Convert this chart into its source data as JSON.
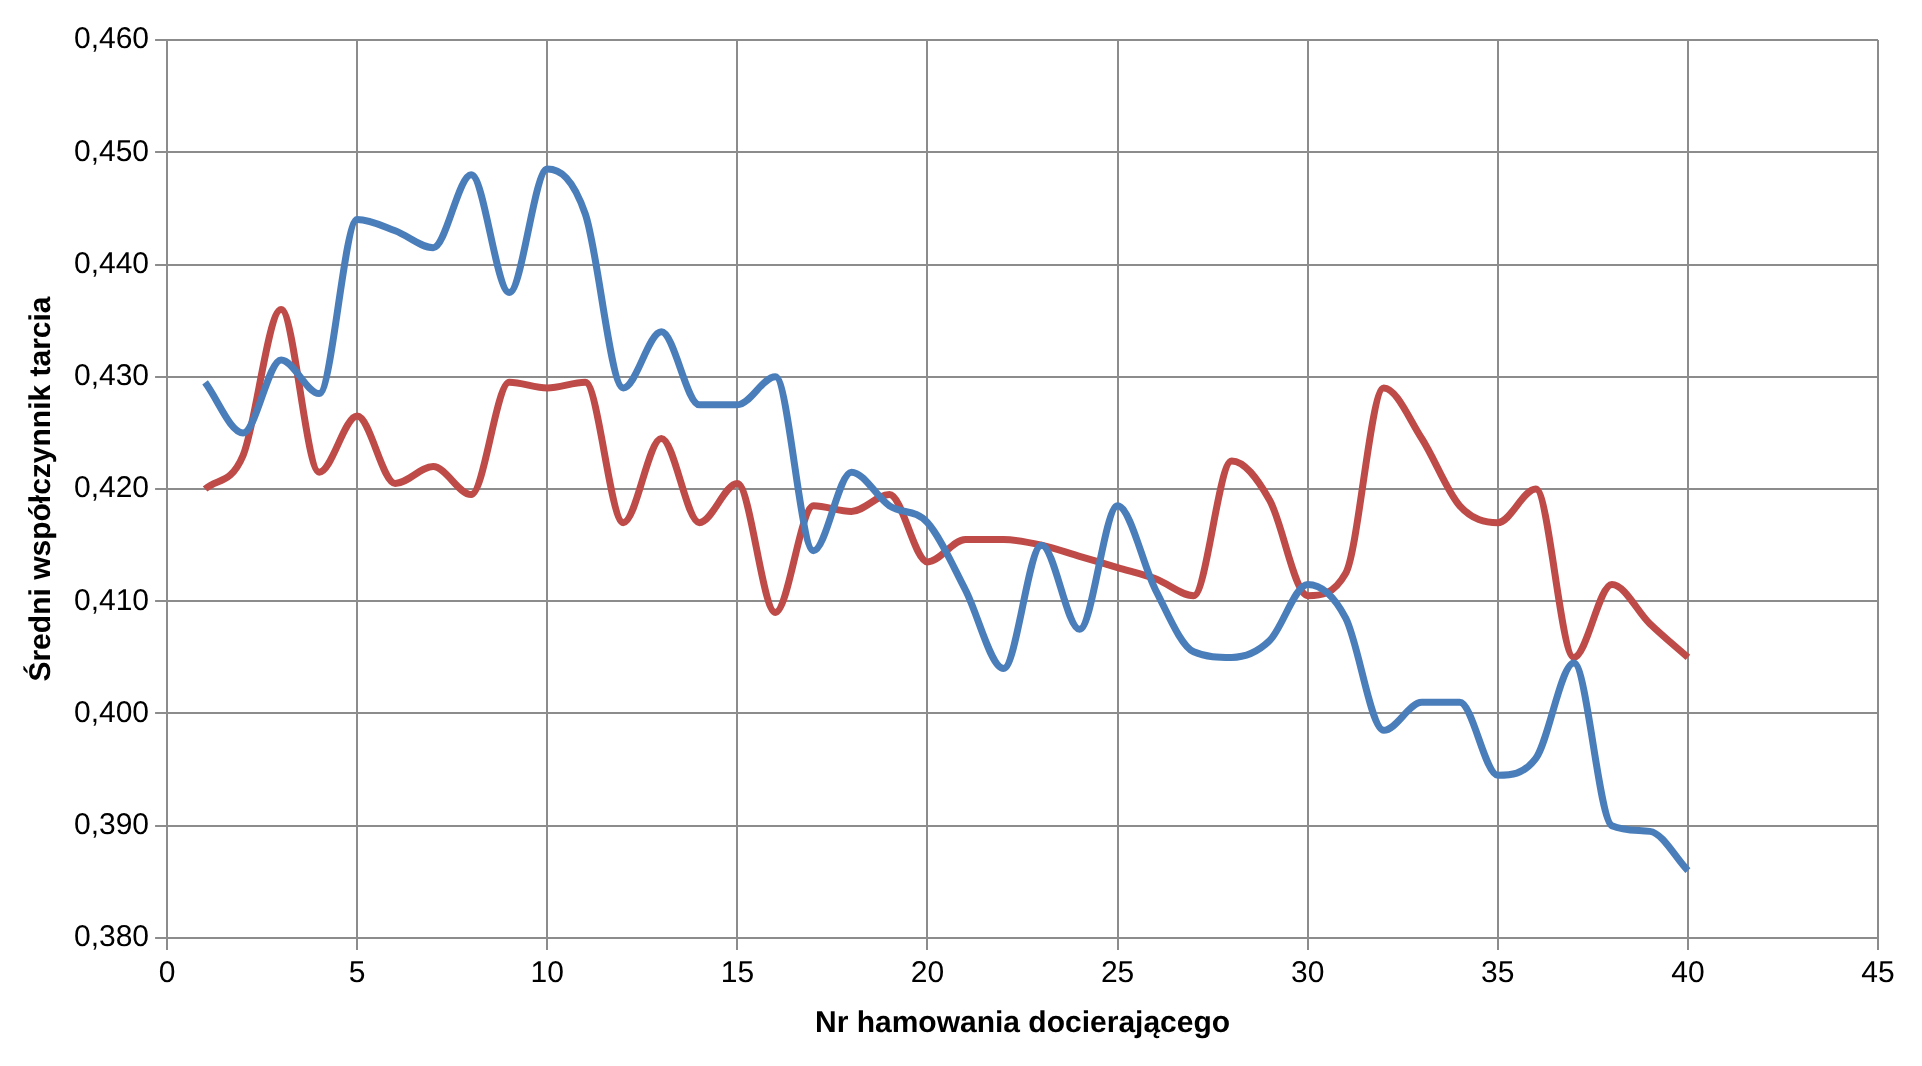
{
  "chart_data": {
    "type": "line",
    "xlabel": "Nr hamowania docierającego",
    "ylabel": "Średni współczynnik tarcia",
    "x": [
      1,
      2,
      3,
      4,
      5,
      6,
      7,
      8,
      9,
      10,
      11,
      12,
      13,
      14,
      15,
      16,
      17,
      18,
      19,
      20,
      21,
      22,
      23,
      24,
      25,
      26,
      27,
      28,
      29,
      30,
      31,
      32,
      33,
      34,
      35,
      36,
      37,
      38,
      39,
      40
    ],
    "series": [
      {
        "color": "#4a7ebb",
        "values": [
          0.4295,
          0.425,
          0.4315,
          0.4285,
          0.444,
          0.443,
          0.4415,
          0.448,
          0.4375,
          0.4485,
          0.4445,
          0.429,
          0.434,
          0.4275,
          0.4275,
          0.43,
          0.4145,
          0.4215,
          0.4185,
          0.417,
          0.411,
          0.404,
          0.415,
          0.4075,
          0.4185,
          0.411,
          0.4055,
          0.405,
          0.4065,
          0.4115,
          0.4085,
          0.3985,
          0.401,
          0.401,
          0.3945,
          0.396,
          0.4045,
          0.39,
          0.3895,
          0.386
        ]
      },
      {
        "color": "#be4b48",
        "values": [
          0.42,
          0.423,
          0.436,
          0.4215,
          0.4265,
          0.4205,
          0.422,
          0.4195,
          0.4295,
          0.429,
          0.4295,
          0.417,
          0.4245,
          0.417,
          0.4205,
          0.409,
          0.4185,
          0.418,
          0.4195,
          0.4135,
          0.4155,
          0.4155,
          0.415,
          0.414,
          0.413,
          0.412,
          0.4105,
          0.4225,
          0.419,
          0.4105,
          0.4125,
          0.429,
          0.4245,
          0.4185,
          0.417,
          0.42,
          0.405,
          0.4115,
          0.408,
          0.405
        ]
      }
    ],
    "xlim": [
      0,
      45
    ],
    "xticks": [
      0,
      5,
      10,
      15,
      20,
      25,
      30,
      35,
      40,
      45
    ],
    "ylim": [
      0.38,
      0.46
    ],
    "yticks": [
      {
        "value": 0.38,
        "label": "0,380"
      },
      {
        "value": 0.39,
        "label": "0,390"
      },
      {
        "value": 0.4,
        "label": "0,400"
      },
      {
        "value": 0.41,
        "label": "0,410"
      },
      {
        "value": 0.42,
        "label": "0,420"
      },
      {
        "value": 0.43,
        "label": "0,430"
      },
      {
        "value": 0.44,
        "label": "0,440"
      },
      {
        "value": 0.45,
        "label": "0,450"
      },
      {
        "value": 0.46,
        "label": "0,460"
      }
    ],
    "grid": true,
    "legend": false,
    "marker": "none",
    "line_style": "solid"
  }
}
